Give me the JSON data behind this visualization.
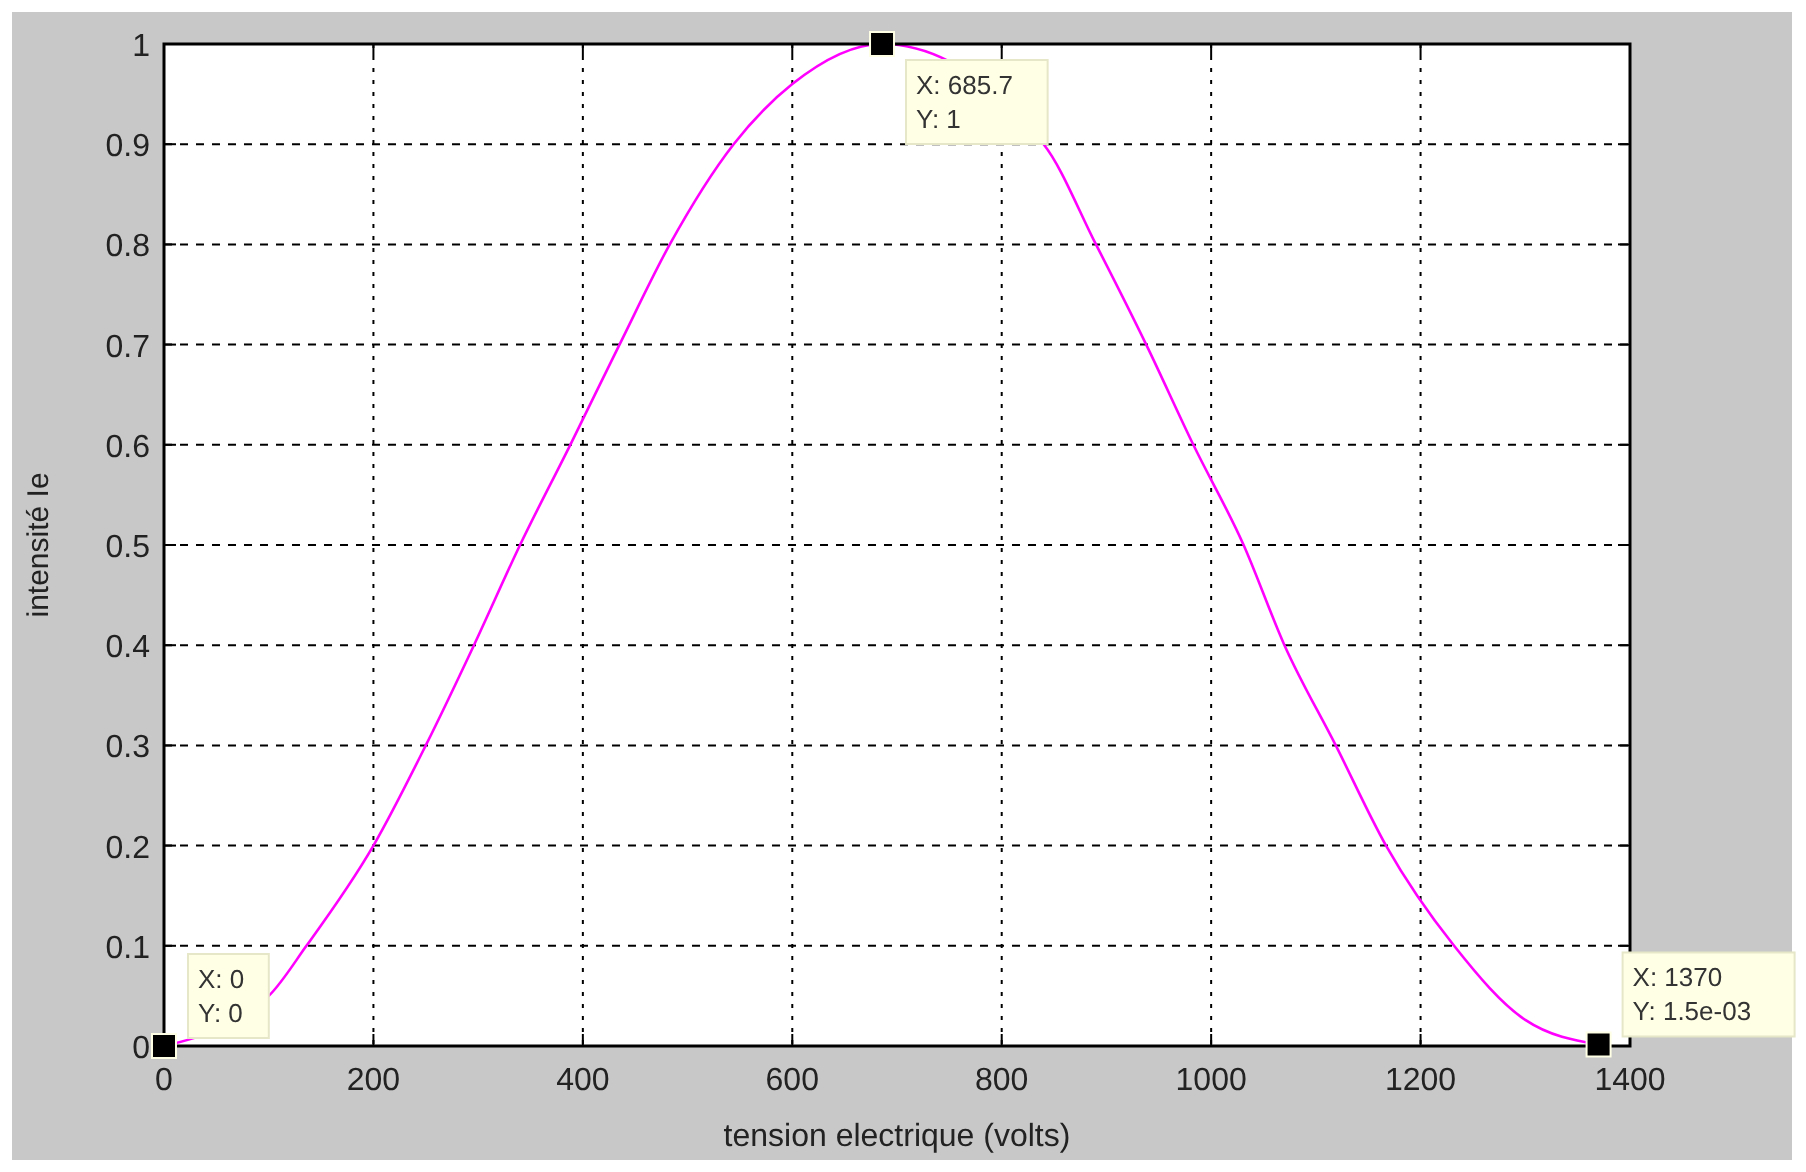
{
  "chart_data": {
    "type": "line",
    "xlabel": "tension electrique (volts)",
    "ylabel": "intensité Ie",
    "x": [
      0,
      100,
      136,
      200,
      250,
      296,
      340,
      388,
      435,
      483,
      544,
      600,
      685.7,
      840,
      890,
      938,
      983,
      1031,
      1070,
      1119,
      1167,
      1232,
      1300,
      1370
    ],
    "series": [
      {
        "color": "#ff00ff",
        "values": [
          0,
          0.05,
          0.1,
          0.2,
          0.3,
          0.4,
          0.5,
          0.6,
          0.7,
          0.8,
          0.9,
          0.96,
          1,
          0.9,
          0.8,
          0.7,
          0.6,
          0.5,
          0.4,
          0.3,
          0.2,
          0.1,
          0.026,
          0.0015
        ]
      }
    ],
    "xlim": [
      0,
      1400
    ],
    "xticks": [
      0,
      200,
      400,
      600,
      800,
      1000,
      1200,
      1400
    ],
    "ylim": [
      0,
      1
    ],
    "yticks": [
      0,
      0.1,
      0.2,
      0.3,
      0.4,
      0.5,
      0.6,
      0.7,
      0.8,
      0.9,
      1
    ],
    "grid": true,
    "marker": "none",
    "line_style": "solid",
    "annotations": [
      {
        "text": "X: 0\nY: 0",
        "x": 0,
        "y": 0
      },
      {
        "text": "X: 685.7\nY: 1",
        "x": 685.7,
        "y": 1
      },
      {
        "text": "X: 1370\nY: 1.5e-03",
        "x": 1370,
        "y": 0.0015
      }
    ]
  }
}
